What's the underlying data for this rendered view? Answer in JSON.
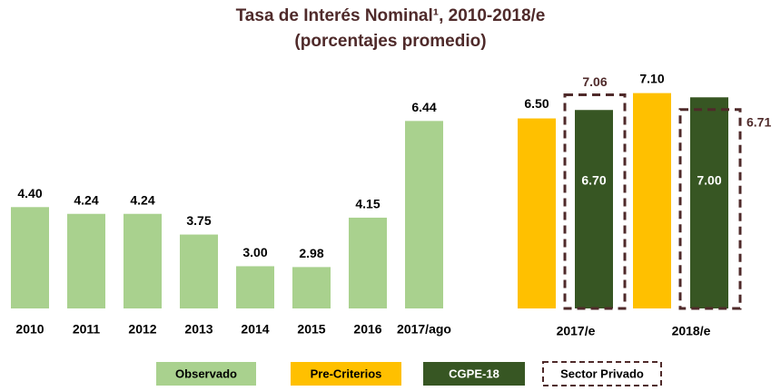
{
  "chart_data": [
    {
      "type": "bar",
      "title": "Tasa de Interés Nominal¹, 2010-2018/e",
      "subtitle": "(porcentajes promedio)",
      "categories": [
        "2010",
        "2011",
        "2012",
        "2013",
        "2014",
        "2015",
        "2016",
        "2017/ago"
      ],
      "series": [
        {
          "name": "Observado",
          "color": "#a9d18e",
          "values": [
            4.4,
            4.24,
            4.24,
            3.75,
            3.0,
            2.98,
            4.15,
            6.44
          ],
          "value_labels": [
            "4.40",
            "4.24",
            "4.24",
            "3.75",
            "3.00",
            "2.98",
            "4.15",
            "6.44"
          ]
        }
      ],
      "ylim": [
        2,
        7.5
      ]
    },
    {
      "type": "bar",
      "categories": [
        "2017/e",
        "2018/e"
      ],
      "series": [
        {
          "name": "Pre-Criterios",
          "color": "#ffc000",
          "values": [
            6.5,
            7.1
          ],
          "value_labels": [
            "6.50",
            "7.10"
          ]
        },
        {
          "name": "CGPE-18",
          "color": "#375623",
          "values": [
            6.7,
            7.0
          ],
          "value_labels": [
            "6.70",
            "7.00"
          ]
        },
        {
          "name": "Sector Privado",
          "color": "#4f2a2a",
          "style": "dashed",
          "values": [
            7.06,
            6.71
          ],
          "value_labels": [
            "7.06",
            "6.71"
          ]
        }
      ],
      "ylim": [
        2,
        7.5
      ]
    }
  ]
}
